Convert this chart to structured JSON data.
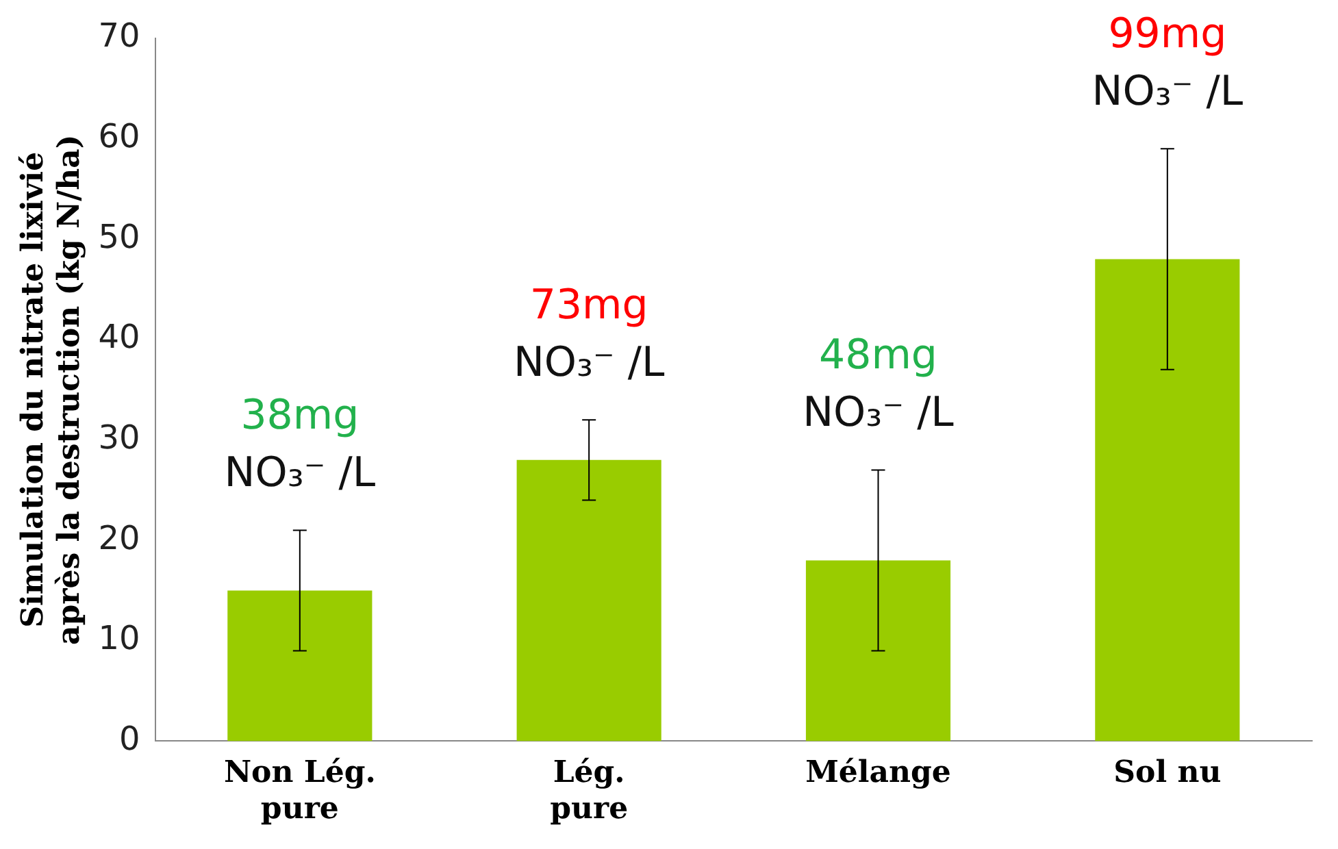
{
  "chart_data": {
    "type": "bar",
    "ylabel": "Simulation du nitrate lixivié après la destruction (kg N/ha)",
    "categories": [
      "Non Lég. pure",
      "Lég. pure",
      "Mélange",
      "Sol nu"
    ],
    "values": [
      15,
      28,
      18,
      48
    ],
    "color": "#99cc00",
    "errors": [
      6,
      4,
      9,
      11
    ],
    "ylim": [
      0,
      70
    ],
    "yticks": [
      0,
      10,
      20,
      30,
      40,
      50,
      60,
      70
    ],
    "grid": false,
    "legend": false,
    "annotations": [
      "38mg",
      "NO₃⁻ /L",
      "73mg",
      "NO₃⁻ /L",
      "48mg",
      "NO₃⁻ /L",
      "99mg",
      "NO₃⁻ /L"
    ]
  }
}
